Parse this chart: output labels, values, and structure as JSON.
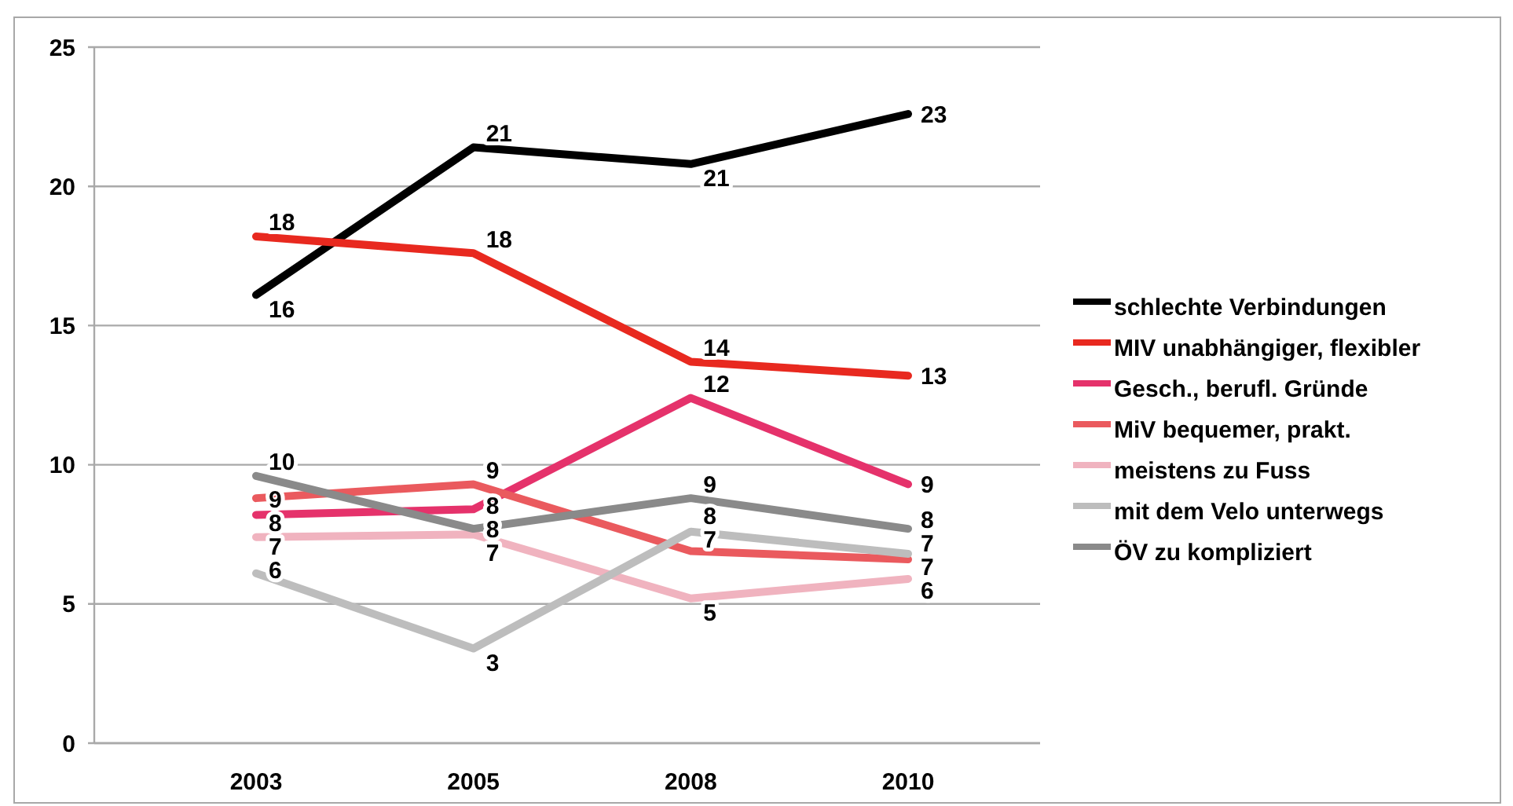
{
  "chart_data": {
    "type": "line",
    "categories": [
      "2003",
      "2005",
      "2008",
      "2010"
    ],
    "ylim": [
      0,
      25
    ],
    "yticks": [
      0,
      5,
      10,
      15,
      20,
      25
    ],
    "grid": "y",
    "legend": "right",
    "line_style": "solid",
    "series": [
      {
        "name": "schlechte Verbindungen",
        "color": "#000000",
        "values": [
          16.1,
          21.4,
          20.8,
          22.6
        ],
        "value_labels": [
          "16",
          "21",
          "21",
          "23"
        ]
      },
      {
        "name": "MIV unabhängiger, flexibler",
        "color": "#e8291f",
        "values": [
          18.2,
          17.6,
          13.7,
          13.2
        ],
        "value_labels": [
          "18",
          "18",
          "14",
          "13"
        ]
      },
      {
        "name": "Gesch., berufl. Gründe",
        "color": "#e5326b",
        "values": [
          8.2,
          8.4,
          12.4,
          9.3
        ],
        "value_labels": [
          "8",
          "8",
          "12",
          "9"
        ]
      },
      {
        "name": "MiV bequemer, prakt.",
        "color": "#ea5a5e",
        "values": [
          8.8,
          9.3,
          6.9,
          6.6
        ],
        "value_labels": [
          "9",
          "9",
          "7",
          "7"
        ]
      },
      {
        "name": "meistens zu Fuss",
        "color": "#f0b3bf",
        "values": [
          7.4,
          7.5,
          5.2,
          5.9
        ],
        "value_labels": [
          "7",
          "7",
          "5",
          "6"
        ]
      },
      {
        "name": "mit dem Velo unterwegs",
        "color": "#bdbdbd",
        "values": [
          6.1,
          3.4,
          7.6,
          6.8
        ],
        "value_labels": [
          "6",
          "3",
          "8",
          "7"
        ]
      },
      {
        "name": "ÖV zu kompliziert",
        "color": "#8a8a8a",
        "values": [
          9.6,
          7.7,
          8.8,
          7.7
        ],
        "value_labels": [
          "10",
          "8",
          "9",
          "8"
        ]
      }
    ]
  }
}
